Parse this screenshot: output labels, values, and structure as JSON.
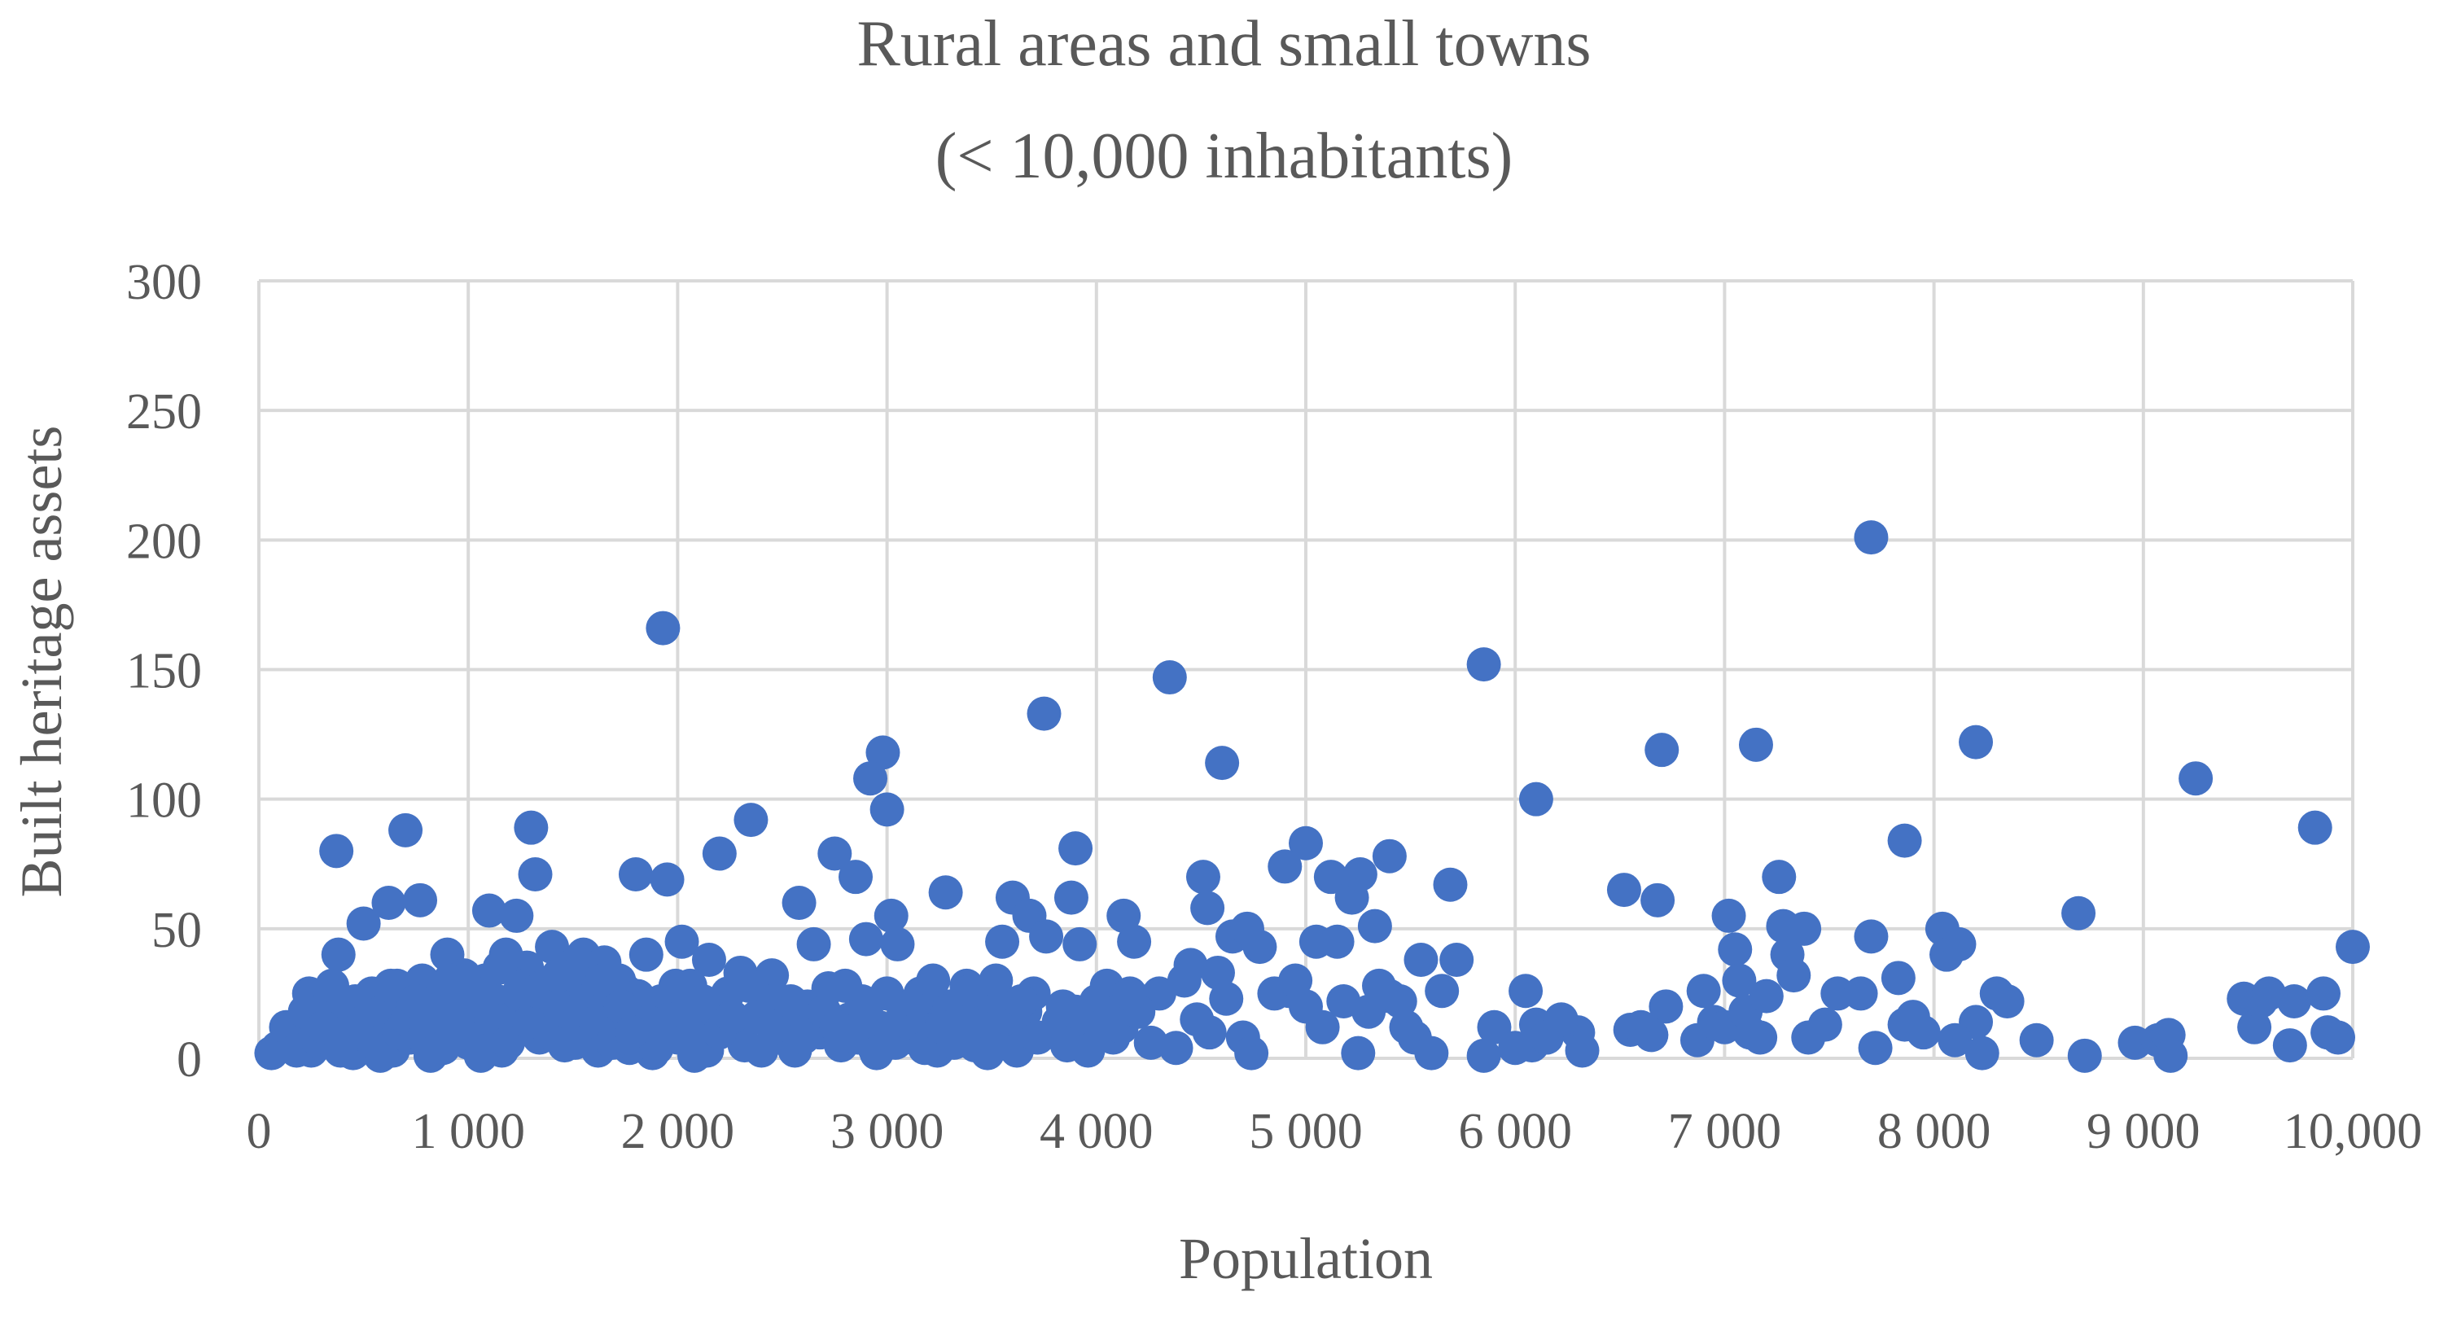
{
  "chart_data": {
    "type": "scatter",
    "title": "Rural areas and small towns",
    "subtitle": "(< 10,000 inhabitants)",
    "xlabel": "Population",
    "ylabel": "Built heritage assets",
    "xlim": [
      0,
      10000
    ],
    "ylim": [
      0,
      300
    ],
    "x_ticks": [
      0,
      1000,
      2000,
      3000,
      4000,
      5000,
      6000,
      7000,
      8000,
      9000,
      10000
    ],
    "x_tick_labels": [
      "0",
      "1 000",
      "2 000",
      "3 000",
      "4 000",
      "5 000",
      "6 000",
      "7 000",
      "8 000",
      "9 000",
      "10,000"
    ],
    "y_ticks": [
      0,
      50,
      100,
      150,
      200,
      250,
      300
    ],
    "y_tick_labels": [
      "0",
      "50",
      "100",
      "150",
      "200",
      "250",
      "300"
    ],
    "grid": true,
    "legend": "none",
    "colors": {
      "points": "#4472c4",
      "grid": "#d9d9d9",
      "text": "#595959"
    },
    "points": [
      [
        1930,
        166
      ],
      [
        7700,
        201
      ],
      [
        4350,
        147
      ],
      [
        5850,
        152
      ],
      [
        3750,
        133
      ],
      [
        4600,
        114
      ],
      [
        2980,
        118
      ],
      [
        2920,
        108
      ],
      [
        3000,
        96
      ],
      [
        2350,
        92
      ],
      [
        1300,
        89
      ],
      [
        700,
        88
      ],
      [
        6100,
        100
      ],
      [
        6700,
        119
      ],
      [
        7150,
        121
      ],
      [
        8200,
        122
      ],
      [
        9250,
        108
      ],
      [
        9820,
        89
      ],
      [
        7860,
        84
      ],
      [
        3900,
        81
      ],
      [
        2200,
        79
      ],
      [
        5000,
        83
      ],
      [
        5400,
        78
      ],
      [
        2750,
        79
      ],
      [
        2850,
        70
      ],
      [
        1800,
        71
      ],
      [
        1950,
        69
      ],
      [
        1320,
        71
      ],
      [
        370,
        80
      ],
      [
        770,
        61
      ],
      [
        620,
        60
      ],
      [
        500,
        52
      ],
      [
        380,
        40
      ],
      [
        900,
        40
      ],
      [
        1100,
        57
      ],
      [
        1230,
        55
      ],
      [
        1400,
        43
      ],
      [
        1550,
        40
      ],
      [
        1650,
        37
      ],
      [
        1750,
        26
      ],
      [
        1850,
        40
      ],
      [
        2020,
        45
      ],
      [
        2150,
        38
      ],
      [
        2300,
        33
      ],
      [
        2450,
        32
      ],
      [
        2580,
        60
      ],
      [
        2650,
        44
      ],
      [
        2900,
        46
      ],
      [
        3020,
        55
      ],
      [
        3050,
        44
      ],
      [
        3280,
        64
      ],
      [
        3550,
        45
      ],
      [
        3600,
        62
      ],
      [
        3680,
        55
      ],
      [
        3760,
        47
      ],
      [
        3880,
        62
      ],
      [
        3920,
        44
      ],
      [
        4050,
        28
      ],
      [
        4130,
        55
      ],
      [
        4180,
        45
      ],
      [
        4300,
        25
      ],
      [
        4450,
        36
      ],
      [
        4510,
        70
      ],
      [
        4530,
        58
      ],
      [
        4580,
        33
      ],
      [
        4620,
        23
      ],
      [
        4650,
        47
      ],
      [
        4720,
        50
      ],
      [
        4780,
        43
      ],
      [
        4900,
        74
      ],
      [
        4920,
        26
      ],
      [
        5050,
        45
      ],
      [
        5120,
        70
      ],
      [
        5150,
        45
      ],
      [
        5220,
        62
      ],
      [
        5260,
        71
      ],
      [
        5330,
        51
      ],
      [
        5350,
        28
      ],
      [
        5400,
        24
      ],
      [
        5480,
        12
      ],
      [
        5550,
        38
      ],
      [
        5650,
        26
      ],
      [
        5690,
        67
      ],
      [
        5720,
        38
      ],
      [
        5900,
        12
      ],
      [
        6050,
        26
      ],
      [
        6100,
        13
      ],
      [
        6300,
        10
      ],
      [
        6520,
        65
      ],
      [
        6550,
        11
      ],
      [
        6680,
        61
      ],
      [
        6720,
        20
      ],
      [
        6870,
        7
      ],
      [
        6900,
        26
      ],
      [
        7020,
        55
      ],
      [
        7050,
        42
      ],
      [
        7070,
        30
      ],
      [
        7120,
        10
      ],
      [
        7170,
        8
      ],
      [
        7260,
        70
      ],
      [
        7280,
        51
      ],
      [
        7300,
        40
      ],
      [
        7330,
        32
      ],
      [
        7380,
        50
      ],
      [
        7400,
        8
      ],
      [
        7480,
        13
      ],
      [
        7540,
        25
      ],
      [
        7650,
        25
      ],
      [
        7700,
        47
      ],
      [
        7720,
        4
      ],
      [
        7830,
        31
      ],
      [
        7860,
        13
      ],
      [
        7900,
        16
      ],
      [
        7950,
        10
      ],
      [
        8040,
        50
      ],
      [
        8060,
        40
      ],
      [
        8120,
        44
      ],
      [
        8200,
        14
      ],
      [
        8230,
        2
      ],
      [
        8300,
        25
      ],
      [
        8490,
        7
      ],
      [
        8690,
        56
      ],
      [
        8720,
        1
      ],
      [
        8960,
        6
      ],
      [
        9070,
        7
      ],
      [
        9120,
        9
      ],
      [
        9130,
        1
      ],
      [
        9480,
        23
      ],
      [
        9530,
        12
      ],
      [
        9560,
        22
      ],
      [
        9600,
        25
      ],
      [
        9700,
        5
      ],
      [
        9720,
        22
      ],
      [
        9860,
        25
      ],
      [
        9880,
        10
      ],
      [
        9930,
        8
      ],
      [
        10000,
        43
      ],
      [
        60,
        2
      ],
      [
        110,
        5
      ],
      [
        160,
        8
      ],
      [
        210,
        10
      ],
      [
        250,
        3
      ],
      [
        300,
        15
      ],
      [
        330,
        20
      ],
      [
        360,
        7
      ],
      [
        420,
        12
      ],
      [
        450,
        2
      ],
      [
        480,
        18
      ],
      [
        520,
        5
      ],
      [
        560,
        10
      ],
      [
        600,
        15
      ],
      [
        640,
        3
      ],
      [
        680,
        20
      ],
      [
        720,
        8
      ],
      [
        760,
        12
      ],
      [
        800,
        25
      ],
      [
        840,
        4
      ],
      [
        870,
        16
      ],
      [
        920,
        9
      ],
      [
        960,
        22
      ],
      [
        1000,
        6
      ],
      [
        1040,
        14
      ],
      [
        1080,
        30
      ],
      [
        1120,
        10
      ],
      [
        1160,
        3
      ],
      [
        1200,
        20
      ],
      [
        1250,
        12
      ],
      [
        1280,
        35
      ],
      [
        1340,
        8
      ],
      [
        1380,
        18
      ],
      [
        1420,
        25
      ],
      [
        1460,
        5
      ],
      [
        1500,
        15
      ],
      [
        1540,
        28
      ],
      [
        1580,
        10
      ],
      [
        1620,
        3
      ],
      [
        1660,
        20
      ],
      [
        1700,
        12
      ],
      [
        1740,
        7
      ],
      [
        1790,
        18
      ],
      [
        1830,
        9
      ],
      [
        1880,
        2
      ],
      [
        1920,
        22
      ],
      [
        1960,
        15
      ],
      [
        2000,
        8
      ],
      [
        2060,
        28
      ],
      [
        2100,
        12
      ],
      [
        2140,
        3
      ],
      [
        2180,
        18
      ],
      [
        2240,
        25
      ],
      [
        2280,
        10
      ],
      [
        2320,
        5
      ],
      [
        2380,
        16
      ],
      [
        2420,
        22
      ],
      [
        2480,
        8
      ],
      [
        2520,
        14
      ],
      [
        2560,
        3
      ],
      [
        2620,
        20
      ],
      [
        2680,
        10
      ],
      [
        2720,
        27
      ],
      [
        2780,
        5
      ],
      [
        2820,
        15
      ],
      [
        2880,
        22
      ],
      [
        2940,
        4
      ],
      [
        2960,
        12
      ],
      [
        3080,
        18
      ],
      [
        3120,
        8
      ],
      [
        3160,
        25
      ],
      [
        3200,
        14
      ],
      [
        3240,
        3
      ],
      [
        3300,
        20
      ],
      [
        3340,
        10
      ],
      [
        3380,
        28
      ],
      [
        3420,
        5
      ],
      [
        3460,
        16
      ],
      [
        3500,
        22
      ],
      [
        3540,
        8
      ],
      [
        3580,
        12
      ],
      [
        3620,
        3
      ],
      [
        3660,
        18
      ],
      [
        3700,
        25
      ],
      [
        3800,
        10
      ],
      [
        3840,
        20
      ],
      [
        3860,
        5
      ],
      [
        3950,
        15
      ],
      [
        4000,
        22
      ],
      [
        4080,
        8
      ],
      [
        4120,
        12
      ],
      [
        4200,
        18
      ],
      [
        4260,
        6
      ],
      [
        4380,
        4
      ],
      [
        4420,
        30
      ],
      [
        4480,
        15
      ],
      [
        4540,
        10
      ],
      [
        4700,
        8
      ],
      [
        4740,
        2
      ],
      [
        4850,
        25
      ],
      [
        4950,
        30
      ],
      [
        5000,
        20
      ],
      [
        5080,
        12
      ],
      [
        5180,
        22
      ],
      [
        5250,
        2
      ],
      [
        5300,
        18
      ],
      [
        5450,
        22
      ],
      [
        5520,
        8
      ],
      [
        5600,
        2
      ],
      [
        5850,
        1
      ],
      [
        6000,
        4
      ],
      [
        6080,
        5
      ],
      [
        6150,
        8
      ],
      [
        6220,
        15
      ],
      [
        6320,
        3
      ],
      [
        6600,
        12
      ],
      [
        6650,
        9
      ],
      [
        6950,
        14
      ],
      [
        7000,
        12
      ],
      [
        7100,
        18
      ],
      [
        7200,
        24
      ],
      [
        8100,
        7
      ],
      [
        8350,
        22
      ],
      [
        240,
        25
      ],
      [
        280,
        18
      ],
      [
        340,
        22
      ],
      [
        400,
        14
      ],
      [
        440,
        9
      ],
      [
        540,
        25
      ],
      [
        580,
        1
      ],
      [
        660,
        28
      ],
      [
        740,
        18
      ],
      [
        780,
        30
      ],
      [
        820,
        1
      ],
      [
        860,
        24
      ],
      [
        940,
        14
      ],
      [
        980,
        32
      ],
      [
        1020,
        20
      ],
      [
        1060,
        1
      ],
      [
        1140,
        22
      ],
      [
        1180,
        40
      ],
      [
        1220,
        16
      ],
      [
        1270,
        28
      ],
      [
        1360,
        22
      ],
      [
        1440,
        12
      ],
      [
        1480,
        35
      ],
      [
        1520,
        20
      ],
      [
        1600,
        26
      ],
      [
        1680,
        14
      ],
      [
        1720,
        30
      ],
      [
        1770,
        4
      ],
      [
        1810,
        24
      ],
      [
        1860,
        14
      ],
      [
        1900,
        4
      ],
      [
        1990,
        28
      ],
      [
        2040,
        18
      ],
      [
        2080,
        1
      ],
      [
        2120,
        22
      ],
      [
        2200,
        10
      ],
      [
        2260,
        16
      ],
      [
        2340,
        28
      ],
      [
        2400,
        3
      ],
      [
        2460,
        12
      ],
      [
        2540,
        22
      ],
      [
        2600,
        8
      ],
      [
        2700,
        18
      ],
      [
        2760,
        12
      ],
      [
        2800,
        28
      ],
      [
        2860,
        8
      ],
      [
        2900,
        18
      ],
      [
        2950,
        2
      ],
      [
        3000,
        25
      ],
      [
        3040,
        6
      ],
      [
        3100,
        14
      ],
      [
        3140,
        22
      ],
      [
        3180,
        4
      ],
      [
        3220,
        30
      ],
      [
        3260,
        12
      ],
      [
        3320,
        6
      ],
      [
        3360,
        16
      ],
      [
        3400,
        26
      ],
      [
        3440,
        12
      ],
      [
        3480,
        2
      ],
      [
        3520,
        30
      ],
      [
        3560,
        16
      ],
      [
        3640,
        22
      ],
      [
        3720,
        8
      ],
      [
        3820,
        14
      ],
      [
        3900,
        18
      ],
      [
        3960,
        3
      ],
      [
        4020,
        12
      ],
      [
        4100,
        18
      ],
      [
        4160,
        25
      ],
      [
        90,
        4
      ],
      [
        130,
        12
      ],
      [
        180,
        3
      ],
      [
        220,
        18
      ],
      [
        270,
        8
      ],
      [
        310,
        12
      ],
      [
        350,
        28
      ],
      [
        390,
        3
      ],
      [
        460,
        22
      ],
      [
        500,
        14
      ],
      [
        550,
        6
      ],
      [
        590,
        18
      ],
      [
        630,
        28
      ],
      [
        670,
        10
      ],
      [
        710,
        15
      ],
      [
        750,
        22
      ],
      [
        790,
        8
      ],
      [
        830,
        14
      ],
      [
        880,
        4
      ],
      [
        910,
        30
      ],
      [
        950,
        18
      ],
      [
        990,
        10
      ],
      [
        1030,
        25
      ],
      [
        1070,
        8
      ],
      [
        1110,
        15
      ],
      [
        1150,
        35
      ],
      [
        1190,
        6
      ],
      [
        1240,
        25
      ],
      [
        1290,
        14
      ],
      [
        1330,
        26
      ],
      [
        1390,
        10
      ],
      [
        1430,
        32
      ],
      [
        1470,
        18
      ],
      [
        1510,
        6
      ],
      [
        1560,
        22
      ],
      [
        1610,
        14
      ],
      [
        1640,
        30
      ],
      [
        1690,
        6
      ],
      [
        1730,
        20
      ],
      [
        1780,
        10
      ]
    ]
  }
}
